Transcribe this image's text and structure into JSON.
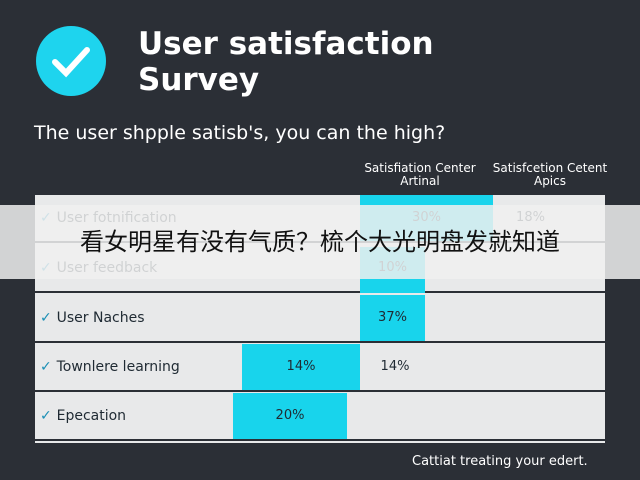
{
  "header": {
    "title": "User satisfaction Survey",
    "subtitle": "The user shpple satisb's, you can the high?"
  },
  "table": {
    "columns": [
      "Satisfiation Center Artinal",
      "Satisfcetion Cetent Apics"
    ],
    "rows": [
      [
        "User fotnification",
        "30%",
        "18%"
      ],
      [
        "User feedback",
        "10%"
      ],
      [
        "User Naches",
        "37%"
      ],
      [
        "Townlere learning",
        "14%",
        "14%"
      ],
      [
        "Epecation",
        "20%"
      ]
    ]
  },
  "banner": "看女明星有没有气质？梳个大光明盘发就知道",
  "footer": "Cattiat treating your edert."
}
